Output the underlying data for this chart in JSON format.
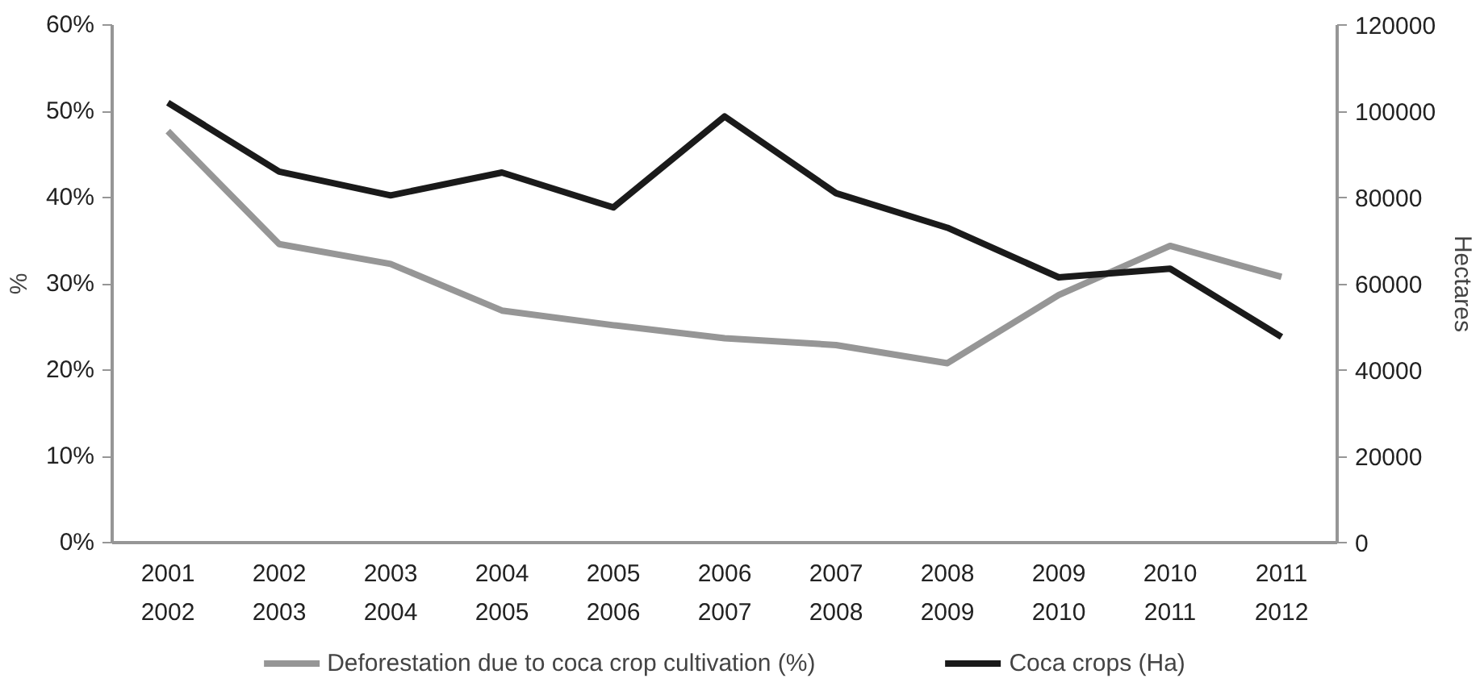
{
  "chart_data": {
    "type": "line",
    "ylabel": "%",
    "y2label": "Hectares",
    "categories": [
      "2001\n2002",
      "2002\n2003",
      "2003\n2004",
      "2004\n2005",
      "2005\n2006",
      "2006\n2007",
      "2007\n2008",
      "2008\n2009",
      "2009\n2010",
      "2010\n2011",
      "2011\n2012"
    ],
    "series": [
      {
        "name": "Deforestation due to coca crop cultivation (%)",
        "color": "#969696",
        "values": [
          47.7,
          34.6,
          32.3,
          26.9,
          25.2,
          23.7,
          22.9,
          20.8,
          28.7,
          34.4,
          30.8
        ]
      },
      {
        "name": "Coca crops (Ha)",
        "color": "#1a1a1a",
        "axis": "y2",
        "values": [
          102000,
          86000,
          80500,
          85800,
          77700,
          98800,
          81000,
          73000,
          61500,
          63500,
          47700
        ]
      }
    ],
    "ylim": [
      0,
      60
    ],
    "yticks": [
      {
        "value": 0,
        "label": "0%"
      },
      {
        "value": 10,
        "label": "10%"
      },
      {
        "value": 20,
        "label": "20%"
      },
      {
        "value": 30,
        "label": "30%"
      },
      {
        "value": 40,
        "label": "40%"
      },
      {
        "value": 50,
        "label": "50%"
      },
      {
        "value": 60,
        "label": "60%"
      }
    ],
    "y2lim": [
      0,
      120000
    ],
    "y2ticks": [
      0,
      20000,
      40000,
      60000,
      80000,
      100000,
      120000
    ],
    "grid": false,
    "legend": "bottom",
    "marker": "none",
    "line_style": "solid"
  }
}
